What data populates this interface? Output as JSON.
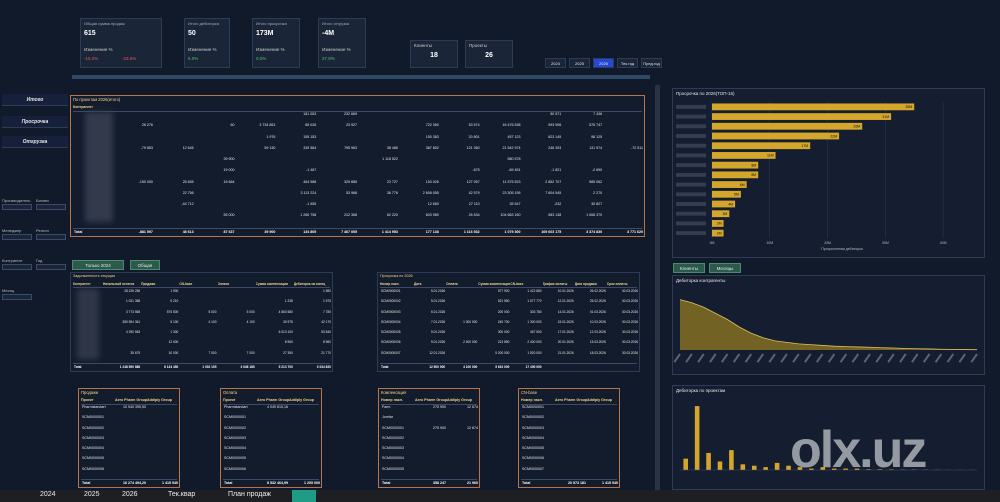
{
  "kpis": [
    {
      "title": "Общая сумма продаж",
      "value": "615",
      "change_label": "Изменение %",
      "changes": [
        "-15.3%",
        "-23.6%"
      ]
    },
    {
      "title": "Итого дебиторка",
      "value": "50",
      "change_label": "Изменение %",
      "changes": [
        "6.0%"
      ]
    },
    {
      "title": "Итого просрочка",
      "value": "173M",
      "change_label": "Изменение %",
      "changes": [
        "0.0%"
      ]
    },
    {
      "title": "Итого отгрузка",
      "value": "-4M",
      "change_label": "Изменение %",
      "changes": [
        "27.8%"
      ]
    }
  ],
  "counters": [
    {
      "title": "Клиенты",
      "value": 18
    },
    {
      "title": "Проекты",
      "value": 26
    }
  ],
  "year_buttons": [
    "2024",
    "2025",
    "2026",
    "Тек.год",
    "Пред.год"
  ],
  "nav": [
    "Итого",
    "Просрочка",
    "Отгрузка"
  ],
  "filters": [
    "Производитель",
    "Бизнес",
    "Менеджер",
    "Регион",
    "Контрагент",
    "Год",
    "Месяц"
  ],
  "main_table": {
    "title": "По проектам 2026(итого)",
    "header": [
      "Контрагент"
    ],
    "rows": [
      [
        null,
        null,
        null,
        null,
        null,
        "181 053",
        "232 669",
        null,
        null,
        null,
        null,
        "50 571",
        "7 436",
        null
      ],
      [
        null,
        "26 276",
        null,
        "60",
        "3 734 851",
        "85 026",
        "23 927",
        null,
        "722 360",
        "53 574",
        "16 476 538",
        "593 906",
        "575 747",
        null
      ],
      [
        null,
        null,
        null,
        null,
        "1 976",
        "155 153",
        null,
        null,
        "150 383",
        "20 801",
        "457 123",
        "623 145",
        "98 125",
        null
      ],
      [
        null,
        "-79 853",
        "12 645",
        null,
        "59 130",
        "339 584",
        "795 963",
        "38 486",
        "387 852",
        "121 360",
        "21 542 974",
        "248 393",
        "131 974",
        "-72 511"
      ],
      [
        null,
        null,
        null,
        "39 900",
        null,
        null,
        null,
        "1 118 522",
        null,
        null,
        "580 578",
        null,
        null,
        null
      ],
      [
        null,
        null,
        null,
        "19 000",
        null,
        "-1 467",
        null,
        null,
        null,
        "-675",
        "-69 451",
        "-1 821",
        "-2 690",
        null
      ],
      [
        null,
        "-150 000",
        "25 655",
        "15 664",
        null,
        "464 988",
        "329 885",
        "23 727",
        "153 026",
        "127 057",
        "11 575 523",
        "2 852 707",
        "585 062",
        null
      ],
      [
        null,
        null,
        "22 756",
        null,
        null,
        "3 113 224",
        "53 968",
        "36 776",
        "2 608 055",
        "42 579",
        "23 305 195",
        "7 604 545",
        "2 270",
        null
      ],
      [
        null,
        null,
        "-44 712",
        null,
        null,
        "-1 555",
        null,
        null,
        "12 660",
        "27 110",
        "35 547",
        "-232",
        "35 827",
        null
      ],
      [
        null,
        null,
        null,
        "55 000",
        null,
        "1 266 758",
        "212 368",
        "62 220",
        "603 980",
        "26 534",
        "104 663 160",
        "583 138",
        "1 068 370",
        null
      ]
    ],
    "total": [
      "Total",
      "-881 597",
      "48 613",
      "87 637",
      "39 900",
      "134 805",
      "7 467 005",
      "1 414 953",
      "177 138",
      "1 116 532",
      "1 079 300",
      "169 603 175",
      "3 374 830",
      "3 771 620"
    ]
  },
  "toggle_buttons": [
    "Только 2024",
    "Общая"
  ],
  "debt_table": {
    "title": "Задолженность текущая",
    "header": [
      "Контрагент",
      "Начальный остаток",
      "Продажи",
      "CN-base",
      "Оплата",
      "Сумма компенсации",
      "Дебиторка на конец"
    ],
    "rows": [
      [
        null,
        "28 226 256",
        "1 900",
        null,
        null,
        null,
        "1 980"
      ],
      [
        null,
        "1 031 368",
        "5 210",
        null,
        null,
        "1 235",
        "1 975"
      ],
      [
        null,
        "3 773 565",
        "575 500",
        "5 000",
        "5 000",
        "4 860 580",
        "7 780"
      ],
      [
        null,
        "380 554 361",
        "5 100",
        "4 100",
        "4 100",
        "30 975",
        "42 170"
      ],
      [
        null,
        "4 290 563",
        "1 300",
        null,
        null,
        "6 013 100",
        "53 840"
      ],
      [
        null,
        null,
        "12 000",
        null,
        null,
        "8 960",
        "8 960"
      ],
      [
        null,
        "35 675",
        "10 000",
        "7 000",
        "7 000",
        "27 350",
        "21 770"
      ]
    ],
    "total": [
      "Total",
      "1 248 590 886",
      "6 134 450",
      "1 002 195",
      "3 048 185",
      "5 213 700",
      "3 034 830"
    ]
  },
  "overdue_table": {
    "title": "Просрочка по 2026",
    "header": [
      "Номер накл.",
      "Дата",
      "Оплата",
      "Сумма компенсации",
      "CN-base",
      "Трафик оплаты",
      "Дата продажи",
      "Срок оплаты"
    ],
    "rows": [
      [
        "SCM0000001",
        "5.01.2026",
        null,
        "577 920",
        "1 422 880",
        "10.01.2026",
        "26.02.2026",
        "30.03.2026"
      ],
      [
        "SCM0000002",
        "5.01.2026",
        null,
        "521 550",
        "1 577 770",
        "12.01.2026",
        "25.02.2026",
        "30.03.2026"
      ],
      [
        "SCM0000003",
        "6.01.2026",
        null,
        "200 000",
        "303 780",
        "14.01.2026",
        "01.03.2026",
        "30.03.2026"
      ],
      [
        "SCM0000004",
        "7.01.2026",
        "1 300 000",
        "245 700",
        "1 300 000",
        "15.01.2026",
        "10.03.2026",
        "30.03.2026"
      ],
      [
        "SCM0000005",
        "9.01.2026",
        null,
        "300 000",
        "457 500",
        "17.01.2026",
        "12.03.2026",
        "30.03.2026"
      ],
      [
        "SCM0000006",
        "9.01.2026",
        "2 400 000",
        "213 850",
        "2 400 000",
        "20.01.2026",
        "15.03.2026",
        "30.03.2026"
      ],
      [
        "SCM0000007",
        "12.01.2026",
        null,
        "5 200 000",
        "1 520 000",
        "21.01.2026",
        "18.03.2026",
        "30.03.2026"
      ]
    ],
    "total": [
      "Total",
      "12 500 000",
      "4 100 000",
      "5 610 000",
      "17 490 000"
    ]
  },
  "bottom_tables": [
    {
      "title": "Продажи",
      "header": [
        "Проект",
        "Aero Pharm Group",
        "Addiply Group"
      ],
      "rows": [
        [
          "Pharmstandart",
          "10 940 395,50",
          null
        ],
        [
          "SCM0000001",
          null,
          null
        ],
        [
          "SCM0000002",
          null,
          null
        ],
        [
          "SCM0000003",
          null,
          null
        ],
        [
          "SCM0000004",
          null,
          null
        ],
        [
          "SCM0000005",
          null,
          null
        ],
        [
          "SCM0000006",
          null,
          null
        ]
      ],
      "total": [
        "Total",
        "16 274 494,20",
        "1 415 940"
      ]
    },
    {
      "title": "Оплата",
      "header": [
        "Проект",
        "Aero Pharm Group",
        "Addiply Group"
      ],
      "rows": [
        [
          "Pharmstandart",
          "4 049 815,16",
          null
        ],
        [
          "SCM0000001",
          null,
          null
        ],
        [
          "SCM0000002",
          null,
          null
        ],
        [
          "SCM0000003",
          null,
          null
        ],
        [
          "SCM0000004",
          null,
          null
        ],
        [
          "SCM0000005",
          null,
          null
        ],
        [
          "SCM0000006",
          null,
          null
        ]
      ],
      "total": [
        "Total",
        "8 532 464,99",
        "1 205 000"
      ]
    },
    {
      "title": "Компенсация",
      "header": [
        "Номер накл.",
        "Aero Pharm Group",
        "Addiply Group"
      ],
      "rows": [
        [
          "Farm",
          "275 900",
          "12 674"
        ],
        [
          "Jomfar",
          null,
          null
        ],
        [
          "SCM0000001",
          "275 900",
          "12 674"
        ],
        [
          "SCM0000002",
          null,
          null
        ],
        [
          "SCM0000003",
          null,
          null
        ],
        [
          "SCM0000004",
          null,
          null
        ],
        [
          "SCM0000005",
          null,
          null
        ]
      ],
      "total": [
        "Total",
        "358 247",
        "21 960"
      ]
    },
    {
      "title": "CN-base",
      "header": [
        "Номер накл.",
        "Aero Pharm Group",
        "Addiply Group"
      ],
      "rows": [
        [
          "SCM0000001",
          null,
          null
        ],
        [
          "SCM0000002",
          null,
          null
        ],
        [
          "SCM0000003",
          null,
          null
        ],
        [
          "SCM0000004",
          null,
          null
        ],
        [
          "SCM0000005",
          null,
          null
        ],
        [
          "SCM0000006",
          null,
          null
        ],
        [
          "SCM0000007",
          null,
          null
        ]
      ],
      "total": [
        "Total",
        "20 573 181",
        "1 415 940"
      ]
    }
  ],
  "chart_buttons": [
    "Клиенты",
    "Месяцы"
  ],
  "chart_data": [
    {
      "type": "hbar",
      "title": "Просрочка по 2026(ТОП-15)",
      "x_label": "Просроченная дебиторка",
      "categories": [
        null,
        null,
        null,
        null,
        null,
        null,
        null,
        null,
        null,
        null,
        null,
        null,
        null,
        null
      ],
      "values": [
        35,
        31,
        26,
        22,
        17,
        11,
        8,
        8,
        6,
        5,
        4,
        3,
        2,
        2
      ],
      "value_labels": [
        "35M",
        "31M",
        "26M",
        "22M",
        "17M",
        "11M",
        "8M",
        "8M",
        "6M",
        "5M",
        "4M",
        "3M",
        "2M",
        "2M"
      ],
      "color": "#d4a72c",
      "xlim": [
        0,
        45
      ],
      "xticks": [
        {
          "value": 0,
          "label": "0M"
        },
        {
          "value": 10,
          "label": "10M"
        },
        {
          "value": 20,
          "label": "20M"
        },
        {
          "value": 30,
          "label": "30M"
        },
        {
          "value": 40,
          "label": "40M"
        }
      ],
      "grid": true
    },
    {
      "type": "area",
      "title": "Дебиторка контрагенты",
      "categories": [
        null,
        null,
        null,
        null,
        null,
        null,
        null,
        null,
        null,
        null,
        null,
        null,
        null,
        null,
        null,
        null,
        null,
        null,
        null,
        null,
        null,
        null,
        null,
        null,
        null,
        null
      ],
      "values": [
        3.3,
        3.1,
        2.8,
        2.4,
        2.0,
        1.5,
        1.1,
        0.8,
        0.6,
        0.5,
        0.4,
        0.35,
        0.3,
        0.25,
        0.22,
        0.2,
        0.18,
        0.15,
        0.13,
        0.1,
        0.08,
        0.07,
        0.05,
        0.04,
        0.03,
        0.02
      ],
      "color": "#8a7423",
      "ylim": [
        0,
        4
      ]
    },
    {
      "type": "bar",
      "title": "Дебиторка по проектам",
      "categories": [
        null,
        null,
        null,
        null,
        null,
        null,
        null,
        null,
        null,
        null,
        null,
        null,
        null,
        null,
        null,
        null,
        null,
        null,
        null,
        null,
        null,
        null,
        null,
        null,
        null,
        null
      ],
      "values": [
        8,
        45,
        12,
        6,
        14,
        4,
        3,
        2,
        5,
        3,
        2,
        1,
        2,
        1,
        1,
        1,
        0.5,
        0.5,
        0.4,
        0.3,
        0.3,
        0.2,
        0.2,
        0.1,
        0.1,
        0.1
      ],
      "color": "#d4a72c",
      "ylim": [
        0,
        50
      ]
    }
  ],
  "watermark": "olx.uz",
  "tabs": [
    "2024",
    "2025",
    "2026",
    "Тек.квар",
    "План продаж"
  ]
}
